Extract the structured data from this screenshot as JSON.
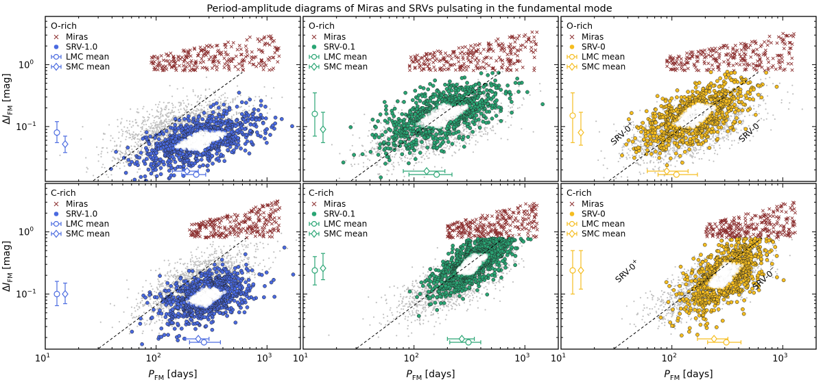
{
  "title": "Period-amplitude diagrams of Miras and SRVs pulsating in the fundamental mode",
  "axes": {
    "xlabel": "P",
    "xlabel_sub": "FM",
    "xlabel_unit": "[days]",
    "ylabel": "ΔI",
    "ylabel_sub": "FM",
    "ylabel_unit": "[mag]",
    "x_ticklabels": [
      {
        "value": 10,
        "base": "10",
        "exp": "1"
      },
      {
        "value": 100,
        "base": "10",
        "exp": "2"
      },
      {
        "value": 1000,
        "base": "10",
        "exp": "3"
      }
    ],
    "y_ticklabels": [
      {
        "value": 1,
        "base": "10",
        "exp": "0"
      },
      {
        "value": 0.1,
        "base": "10",
        "exp": "−1"
      }
    ]
  },
  "colors": {
    "blue": "#4a6ae0",
    "green": "#2aa574",
    "yellow": "#f5bd20",
    "mira": "#8b2e2e",
    "grey": "#c0c0c0"
  },
  "legend_labels": {
    "miras": "Miras",
    "lmc_mean": "LMC mean",
    "smc_mean": "SMC mean"
  },
  "chart_data": [
    {
      "type": "scatter",
      "chemistry": "O-rich",
      "srv_label": "SRV-1.0",
      "color": "blue",
      "xscale": "log",
      "yscale": "log",
      "xlim": [
        10,
        2000
      ],
      "ylim": [
        0.013,
        6
      ],
      "miras": {
        "xrange": [
          90,
          1300
        ],
        "yrange": [
          0.8,
          3.5
        ]
      },
      "srv_cloud": {
        "center": [
          250,
          0.06
        ],
        "spread": [
          0.55,
          0.45
        ],
        "corr": 0.6
      },
      "grey_cloud": {
        "center": [
          150,
          0.09
        ],
        "spread": [
          0.6,
          0.55
        ],
        "corr": 0.6
      },
      "dashed_line": {
        "x": [
          25,
          600
        ],
        "y": [
          0.012,
          0.75
        ]
      },
      "lmc_mean": {
        "x": 230,
        "xerr": [
          170,
          280
        ],
        "y_at_left": 0.08,
        "yerr": [
          0.055,
          0.12
        ]
      },
      "smc_mean": {
        "x": 190,
        "xerr": [
          140,
          240
        ],
        "y_at_left": 0.052,
        "yerr": [
          0.038,
          0.07
        ]
      },
      "annotations": []
    },
    {
      "type": "scatter",
      "chemistry": "O-rich",
      "srv_label": "SRV-0.1",
      "color": "green",
      "xscale": "log",
      "yscale": "log",
      "xlim": [
        10,
        2000
      ],
      "ylim": [
        0.013,
        6
      ],
      "miras": {
        "xrange": [
          90,
          1300
        ],
        "yrange": [
          0.8,
          3.5
        ]
      },
      "srv_cloud": {
        "center": [
          180,
          0.15
        ],
        "spread": [
          0.55,
          0.55
        ],
        "corr": 0.65
      },
      "grey_cloud": {
        "center": [
          150,
          0.09
        ],
        "spread": [
          0.6,
          0.55
        ],
        "corr": 0.6
      },
      "dashed_line": {
        "x": [
          25,
          600
        ],
        "y": [
          0.012,
          0.75
        ]
      },
      "lmc_mean": {
        "x": 160,
        "xerr": [
          90,
          220
        ],
        "y_at_left": 0.16,
        "yerr": [
          0.07,
          0.35
        ]
      },
      "smc_mean": {
        "x": 130,
        "xerr": [
          80,
          190
        ],
        "y_at_left": 0.09,
        "yerr": [
          0.055,
          0.17
        ]
      },
      "annotations": []
    },
    {
      "type": "scatter",
      "chemistry": "O-rich",
      "srv_label": "SRV-0",
      "color": "yellow",
      "xscale": "log",
      "yscale": "log",
      "xlim": [
        10,
        2000
      ],
      "ylim": [
        0.013,
        6
      ],
      "miras": {
        "xrange": [
          90,
          1300
        ],
        "yrange": [
          0.8,
          3.5
        ]
      },
      "srv_cloud": {
        "center": [
          160,
          0.15
        ],
        "spread": [
          0.45,
          0.55
        ],
        "corr": 0.6
      },
      "grey_cloud": {
        "center": [
          150,
          0.09
        ],
        "spread": [
          0.6,
          0.55
        ],
        "corr": 0.6
      },
      "dashed_line": {
        "x": [
          25,
          600
        ],
        "y": [
          0.012,
          0.75
        ]
      },
      "lmc_mean": {
        "x": 110,
        "xerr": [
          75,
          170
        ],
        "y_at_left": 0.15,
        "yerr": [
          0.055,
          0.35
        ]
      },
      "smc_mean": {
        "x": 90,
        "xerr": [
          60,
          140
        ],
        "y_at_left": 0.08,
        "yerr": [
          0.05,
          0.17
        ]
      },
      "annotations": [
        {
          "text": "SRV-0",
          "sup": "+",
          "x": 30,
          "y": 0.05,
          "rotate": -42
        },
        {
          "text": "SRV-0",
          "sup": "−",
          "x": 430,
          "y": 0.055,
          "rotate": -42
        }
      ]
    },
    {
      "type": "scatter",
      "chemistry": "C-rich",
      "srv_label": "SRV-1.0",
      "color": "blue",
      "xscale": "log",
      "yscale": "log",
      "xlim": [
        10,
        2000
      ],
      "ylim": [
        0.013,
        6
      ],
      "miras": {
        "xrange": [
          200,
          1300
        ],
        "yrange": [
          0.8,
          3.2
        ]
      },
      "srv_cloud": {
        "center": [
          280,
          0.09
        ],
        "spread": [
          0.4,
          0.42
        ],
        "corr": 0.45
      },
      "grey_cloud": {
        "center": [
          230,
          0.15
        ],
        "spread": [
          0.5,
          0.55
        ],
        "corr": 0.7
      },
      "dashed_line": {
        "x": [
          28,
          650
        ],
        "y": [
          0.012,
          0.8
        ]
      },
      "lmc_mean": {
        "x": 270,
        "xerr": [
          200,
          380
        ],
        "y_at_left": 0.1,
        "yerr": [
          0.065,
          0.16
        ]
      },
      "smc_mean": {
        "x": 240,
        "xerr": [
          185,
          300
        ],
        "y_at_left": 0.1,
        "yerr": [
          0.07,
          0.15
        ]
      },
      "annotations": []
    },
    {
      "type": "scatter",
      "chemistry": "C-rich",
      "srv_label": "SRV-0.1",
      "color": "green",
      "xscale": "log",
      "yscale": "log",
      "xlim": [
        10,
        2000
      ],
      "ylim": [
        0.013,
        6
      ],
      "miras": {
        "xrange": [
          200,
          1300
        ],
        "yrange": [
          0.8,
          3.2
        ]
      },
      "srv_cloud": {
        "center": [
          330,
          0.3
        ],
        "spread": [
          0.35,
          0.5
        ],
        "corr": 0.7
      },
      "grey_cloud": {
        "center": [
          230,
          0.15
        ],
        "spread": [
          0.5,
          0.55
        ],
        "corr": 0.7
      },
      "dashed_line": {
        "x": [
          28,
          650
        ],
        "y": [
          0.012,
          0.8
        ]
      },
      "lmc_mean": {
        "x": 310,
        "xerr": [
          210,
          400
        ],
        "y_at_left": 0.24,
        "yerr": [
          0.14,
          0.4
        ]
      },
      "smc_mean": {
        "x": 270,
        "xerr": [
          200,
          350
        ],
        "y_at_left": 0.26,
        "yerr": [
          0.17,
          0.45
        ]
      },
      "annotations": []
    },
    {
      "type": "scatter",
      "chemistry": "C-rich",
      "srv_label": "SRV-0",
      "color": "yellow",
      "xscale": "log",
      "yscale": "log",
      "xlim": [
        10,
        2000
      ],
      "ylim": [
        0.013,
        6
      ],
      "miras": {
        "xrange": [
          200,
          1300
        ],
        "yrange": [
          0.8,
          3.2
        ]
      },
      "srv_cloud": {
        "center": [
          300,
          0.2
        ],
        "spread": [
          0.35,
          0.6
        ],
        "corr": 0.6
      },
      "grey_cloud": {
        "center": [
          230,
          0.15
        ],
        "spread": [
          0.5,
          0.55
        ],
        "corr": 0.7
      },
      "dashed_line": {
        "x": [
          28,
          650
        ],
        "y": [
          0.012,
          0.8
        ]
      },
      "lmc_mean": {
        "x": 310,
        "xerr": [
          210,
          420
        ],
        "y_at_left": 0.24,
        "yerr": [
          0.1,
          0.5
        ]
      },
      "smc_mean": {
        "x": 240,
        "xerr": [
          170,
          320
        ],
        "y_at_left": 0.24,
        "yerr": [
          0.12,
          0.5
        ]
      },
      "annotations": [
        {
          "text": "SRV-0",
          "sup": "+",
          "x": 33,
          "y": 0.15,
          "rotate": -42
        },
        {
          "text": "SRV-0",
          "sup": "−",
          "x": 570,
          "y": 0.115,
          "rotate": -42
        }
      ]
    }
  ]
}
